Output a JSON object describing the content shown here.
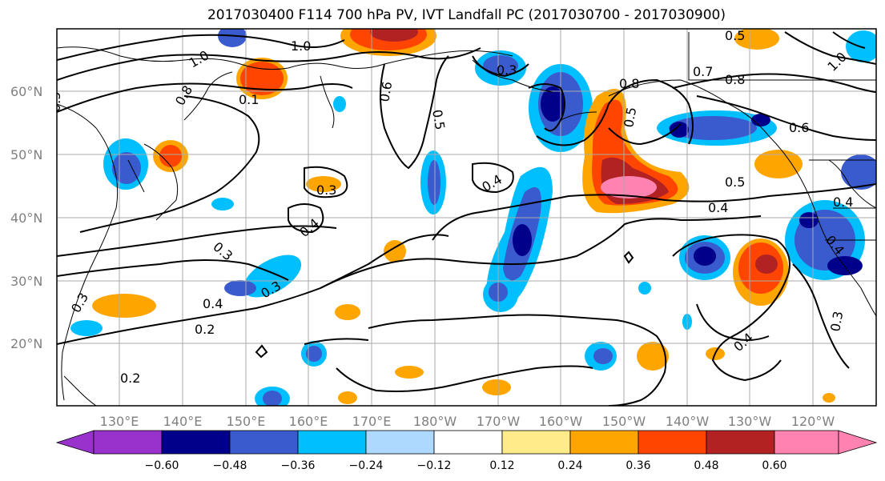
{
  "title": "2017030400 F114 700 hPa PV, IVT Landfall PC (2017030700 - 2017030900)",
  "lat_labels": [
    "60°N",
    "50°N",
    "40°N",
    "30°N",
    "20°N"
  ],
  "lon_labels": [
    "130°E",
    "140°E",
    "150°E",
    "160°E",
    "170°E",
    "180°W",
    "170°W",
    "160°W",
    "150°W",
    "140°W",
    "130°W",
    "120°W"
  ],
  "contour_labels": [
    "1.0",
    "1.0",
    "0.8",
    "0.1",
    "0.6",
    "0.5",
    "0.5",
    "0.3",
    "0.4",
    "0.3",
    "0.4",
    "0.3",
    "0.2",
    "0.2",
    "0.3",
    "0.4",
    "0.5",
    "0.4",
    "0.5",
    "0.8",
    "0.7",
    "0.8",
    "0.6",
    "0.5",
    "0.4",
    "0.4",
    "0.4",
    "0.3",
    "1.0",
    "0.3"
  ],
  "colorbar": {
    "tick_labels": [
      "−0.60",
      "−0.48",
      "−0.36",
      "−0.24",
      "−0.12",
      "0.12",
      "0.24",
      "0.36",
      "0.48",
      "0.60"
    ],
    "colors": [
      "#9932cc",
      "#00008b",
      "#3a5bcd",
      "#00bfff",
      "#add8ff",
      "#ffffff",
      "#ffeb8a",
      "#ffa500",
      "#ff4500",
      "#b22222",
      "#ff83b0"
    ]
  }
}
